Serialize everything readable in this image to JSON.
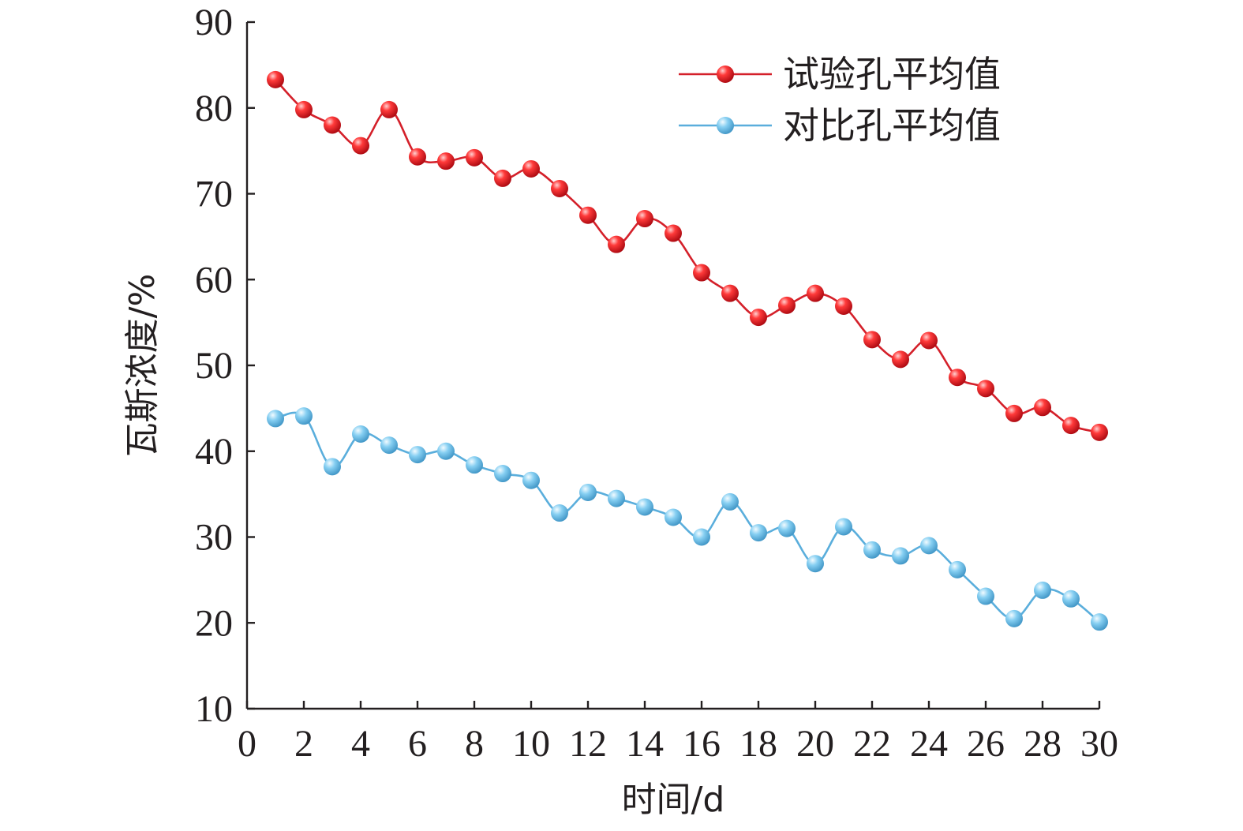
{
  "chart_data": {
    "type": "line",
    "xlabel": "时间/d",
    "ylabel": "瓦斯浓度/%",
    "xlim": [
      0,
      30
    ],
    "ylim": [
      10,
      90
    ],
    "x_ticks": [
      "0",
      "2",
      "4",
      "6",
      "8",
      "10",
      "12",
      "14",
      "16",
      "18",
      "20",
      "22",
      "24",
      "26",
      "28",
      "30"
    ],
    "y_ticks": [
      "10",
      "20",
      "30",
      "40",
      "50",
      "60",
      "70",
      "80",
      "90"
    ],
    "grid": false,
    "legend_position": "top-right",
    "x": [
      1,
      2,
      3,
      4,
      5,
      6,
      7,
      8,
      9,
      10,
      11,
      12,
      13,
      14,
      15,
      16,
      17,
      18,
      19,
      20,
      21,
      22,
      23,
      24,
      25,
      26,
      27,
      28,
      29,
      30
    ],
    "series": [
      {
        "name": "试验孔平均值",
        "color": "#e0202a",
        "line_color": "#d4202a",
        "values": [
          83.3,
          79.8,
          78.0,
          75.6,
          79.8,
          74.3,
          73.8,
          74.2,
          71.8,
          72.9,
          70.6,
          67.5,
          64.1,
          67.1,
          65.4,
          60.8,
          58.4,
          55.6,
          57.0,
          58.4,
          56.9,
          53.0,
          50.7,
          52.9,
          48.6,
          47.3,
          44.4,
          45.1,
          43.0,
          42.2
        ]
      },
      {
        "name": "对比孔平均值",
        "color": "#6bbde6",
        "line_color": "#5aaedc",
        "values": [
          43.8,
          44.1,
          38.2,
          42.0,
          40.7,
          39.6,
          40.0,
          38.4,
          37.4,
          36.6,
          32.8,
          35.2,
          34.5,
          33.5,
          32.3,
          30.0,
          34.1,
          30.5,
          31.0,
          26.9,
          31.2,
          28.5,
          27.8,
          29.0,
          26.2,
          23.1,
          20.5,
          23.8,
          22.8,
          20.1
        ]
      }
    ]
  }
}
